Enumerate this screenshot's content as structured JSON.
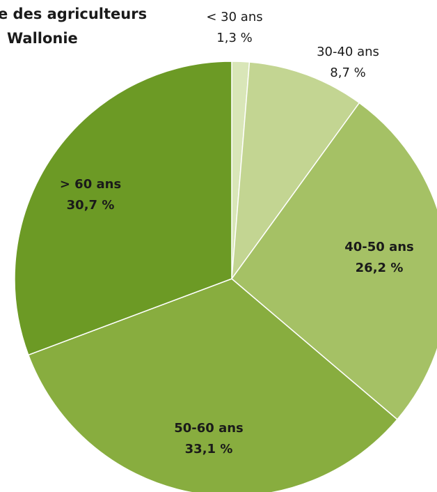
{
  "title_lines": [
    "e des agriculteurs",
    "Wallonie"
  ],
  "chart_data": {
    "type": "pie",
    "title": "e des agriculteurs Wallonie",
    "start_angle_deg": 0,
    "direction": "clockwise",
    "slices": [
      {
        "label": "< 30 ans",
        "value": 1.3,
        "value_label": "1,3 %",
        "color": "#d9e6b8",
        "bold": false
      },
      {
        "label": "30-40 ans",
        "value": 8.7,
        "value_label": "8,7 %",
        "color": "#c3d592",
        "bold": false
      },
      {
        "label": "40-50 ans",
        "value": 26.2,
        "value_label": "26,2 %",
        "color": "#a5c165",
        "bold": true
      },
      {
        "label": "50-60 ans",
        "value": 33.1,
        "value_label": "33,1 %",
        "color": "#88ad3f",
        "bold": true
      },
      {
        "label": "> 60 ans",
        "value": 30.7,
        "value_label": "30,7 %",
        "color": "#6c9a25",
        "bold": true
      }
    ]
  }
}
